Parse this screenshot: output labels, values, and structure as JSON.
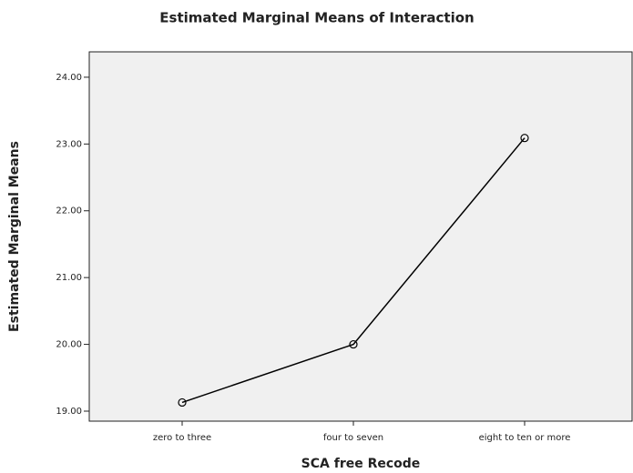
{
  "chart_data": {
    "type": "line",
    "title": "Estimated Marginal Means of Interaction",
    "x_label": "SCA free Recode",
    "y_label": "Estimated Marginal Means",
    "categories": [
      "zero to three",
      "four to seven",
      "eight to ten or more"
    ],
    "values": [
      19.13,
      20.0,
      23.09
    ],
    "color": "#000000",
    "ylim": [
      18.85,
      24.38
    ],
    "yticks": [
      {
        "value": 19,
        "label": "19.00"
      },
      {
        "value": 20,
        "label": "20.00"
      },
      {
        "value": 21,
        "label": "21.00"
      },
      {
        "value": 22,
        "label": "22.00"
      },
      {
        "value": 23,
        "label": "23.00"
      },
      {
        "value": 24,
        "label": "24.00"
      }
    ]
  }
}
